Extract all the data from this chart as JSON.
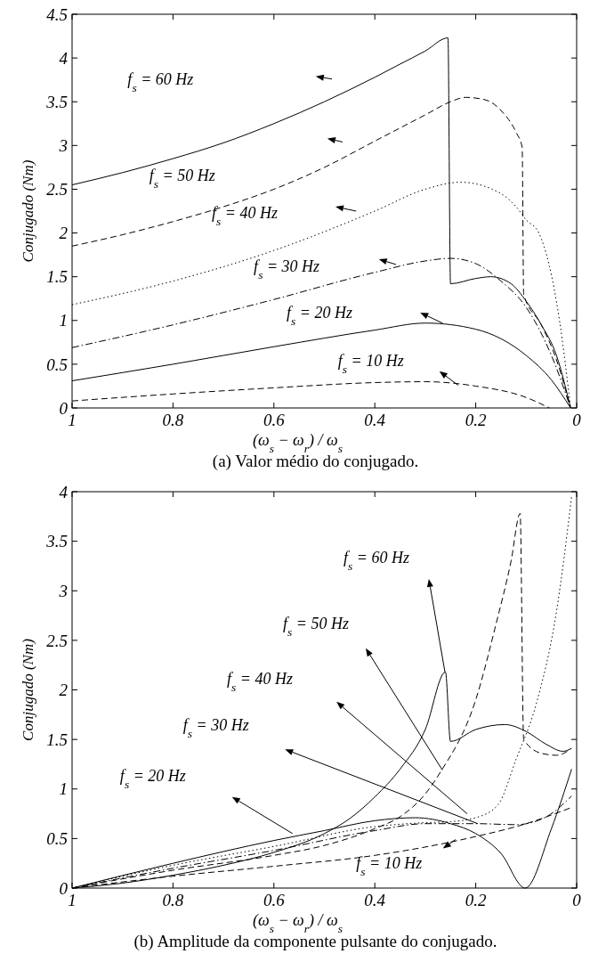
{
  "chart_data": [
    {
      "type": "line",
      "xlabel": "(ω$_{s}$ − ω$_{r}$) / ω$_{s}$",
      "ylabel": "Conjugado (Nm)",
      "xlim": [
        1,
        0
      ],
      "ylim": [
        0,
        4.5
      ],
      "xticks": [
        1,
        0.8,
        0.6,
        0.4,
        0.2,
        0
      ],
      "yticks": [
        0,
        0.5,
        1,
        1.5,
        2,
        2.5,
        3,
        3.5,
        4,
        4.5
      ],
      "grid": false,
      "annotations": [
        "f$_{s}$ = 60 Hz",
        "f$_{s}$ = 50 Hz",
        "f$_{s}$ = 40 Hz",
        "f$_{s}$ = 30 Hz",
        "f$_{s}$ = 20 Hz",
        "f$_{s}$ = 10 Hz",
        "(a) Valor médio do conjugado."
      ],
      "series": [
        {
          "color": "#000000",
          "line_style": "solid",
          "x": [
            1,
            0.9,
            0.8,
            0.7,
            0.6,
            0.5,
            0.4,
            0.35,
            0.3,
            0.255,
            0.25,
            0.2,
            0.17,
            0.13,
            0.1,
            0.07,
            0.04,
            0.012
          ],
          "values": [
            2.55,
            2.69,
            2.85,
            3.03,
            3.25,
            3.5,
            3.78,
            3.93,
            4.08,
            4.23,
            1.42,
            1.48,
            1.5,
            1.42,
            1.22,
            0.95,
            0.6,
            0
          ]
        },
        {
          "color": "#000000",
          "line_style": "dashed",
          "x": [
            1,
            0.9,
            0.8,
            0.7,
            0.6,
            0.5,
            0.4,
            0.3,
            0.25,
            0.22,
            0.18,
            0.15,
            0.12,
            0.108,
            0.105,
            0.07,
            0.04,
            0.012
          ],
          "values": [
            1.85,
            1.98,
            2.13,
            2.3,
            2.5,
            2.75,
            3.05,
            3.35,
            3.5,
            3.55,
            3.52,
            3.4,
            3.15,
            2.98,
            1.3,
            0.95,
            0.55,
            0
          ]
        },
        {
          "color": "#000000",
          "line_style": "dotted",
          "x": [
            1,
            0.8,
            0.6,
            0.4,
            0.3,
            0.23,
            0.15,
            0.12,
            0.1,
            0.075,
            0.034,
            0.012
          ],
          "values": [
            1.18,
            1.45,
            1.8,
            2.25,
            2.5,
            2.58,
            2.45,
            2.3,
            2.15,
            2.0,
            1.0,
            0
          ]
        },
        {
          "color": "#000000",
          "line_style": "dashdot",
          "x": [
            1,
            0.8,
            0.6,
            0.4,
            0.3,
            0.25,
            0.2,
            0.15,
            0.1,
            0.05,
            0.012
          ],
          "values": [
            0.69,
            0.95,
            1.24,
            1.55,
            1.68,
            1.71,
            1.65,
            1.45,
            1.15,
            0.6,
            0
          ]
        },
        {
          "color": "#000000",
          "line_style": "solid",
          "x": [
            1,
            0.8,
            0.6,
            0.4,
            0.3,
            0.2,
            0.1,
            0.05,
            0.012
          ],
          "values": [
            0.31,
            0.5,
            0.7,
            0.89,
            0.97,
            0.9,
            0.6,
            0.32,
            0
          ]
        },
        {
          "color": "#000000",
          "line_style": "dashed",
          "x": [
            1,
            0.8,
            0.6,
            0.4,
            0.3,
            0.2,
            0.1,
            0.054
          ],
          "values": [
            0.08,
            0.16,
            0.23,
            0.29,
            0.3,
            0.25,
            0.12,
            0
          ]
        }
      ]
    },
    {
      "type": "line",
      "xlabel": "(ω$_{s}$ − ω$_{r}$) / ω$_{s}$",
      "ylabel": "Conjugado (Nm)",
      "xlim": [
        1,
        0
      ],
      "ylim": [
        0,
        4
      ],
      "xticks": [
        1,
        0.8,
        0.6,
        0.4,
        0.2,
        0
      ],
      "yticks": [
        0,
        0.5,
        1,
        1.5,
        2,
        2.5,
        3,
        3.5,
        4
      ],
      "grid": false,
      "annotations": [
        "f$_{s}$ = 60 Hz",
        "f$_{s}$ = 50 Hz",
        "f$_{s}$ = 40 Hz",
        "f$_{s}$ = 30 Hz",
        "f$_{s}$ = 20 Hz",
        "f$_{s}$ = 10 Hz",
        "(b) Amplitude da componente pulsante do conjugado."
      ],
      "series": [
        {
          "color": "#000000",
          "line_style": "solid",
          "x": [
            1,
            0.9,
            0.8,
            0.7,
            0.6,
            0.5,
            0.45,
            0.4,
            0.35,
            0.3,
            0.26,
            0.25,
            0.2,
            0.142,
            0.1,
            0.06,
            0.027,
            0.01
          ],
          "values": [
            0,
            0.05,
            0.13,
            0.23,
            0.36,
            0.55,
            0.7,
            0.92,
            1.2,
            1.6,
            2.18,
            1.48,
            1.6,
            1.65,
            1.58,
            1.45,
            1.38,
            1.41
          ]
        },
        {
          "color": "#000000",
          "line_style": "dashed",
          "x": [
            1,
            0.8,
            0.6,
            0.5,
            0.4,
            0.35,
            0.3,
            0.27,
            0.2,
            0.16,
            0.13,
            0.112,
            0.105,
            0.07,
            0.04,
            0.012
          ],
          "values": [
            0,
            0.18,
            0.33,
            0.43,
            0.6,
            0.72,
            0.95,
            1.17,
            1.9,
            2.66,
            3.3,
            3.78,
            1.5,
            1.36,
            1.34,
            1.4
          ]
        },
        {
          "color": "#000000",
          "line_style": "dotted",
          "x": [
            1,
            0.8,
            0.6,
            0.4,
            0.3,
            0.25,
            0.2,
            0.156,
            0.12,
            0.08,
            0.04,
            0.01
          ],
          "values": [
            0,
            0.23,
            0.42,
            0.62,
            0.66,
            0.67,
            0.71,
            0.84,
            1.3,
            1.86,
            2.79,
            3.95
          ]
        },
        {
          "color": "#000000",
          "line_style": "dashdot",
          "x": [
            1,
            0.8,
            0.6,
            0.4,
            0.3,
            0.2,
            0.12,
            0.06,
            0.01
          ],
          "values": [
            0,
            0.2,
            0.38,
            0.58,
            0.65,
            0.65,
            0.64,
            0.72,
            0.93
          ]
        },
        {
          "color": "#000000",
          "line_style": "solid",
          "x": [
            1,
            0.8,
            0.6,
            0.5,
            0.4,
            0.32,
            0.25,
            0.2,
            0.15,
            0.102,
            0.05,
            0.01
          ],
          "values": [
            0,
            0.25,
            0.48,
            0.58,
            0.68,
            0.71,
            0.65,
            0.55,
            0.35,
            0,
            0.6,
            1.2
          ]
        },
        {
          "color": "#000000",
          "line_style": "dashed",
          "x": [
            1,
            0.8,
            0.6,
            0.4,
            0.2,
            0.1,
            0.012
          ],
          "values": [
            0,
            0.12,
            0.22,
            0.33,
            0.52,
            0.65,
            0.81
          ]
        }
      ]
    }
  ]
}
